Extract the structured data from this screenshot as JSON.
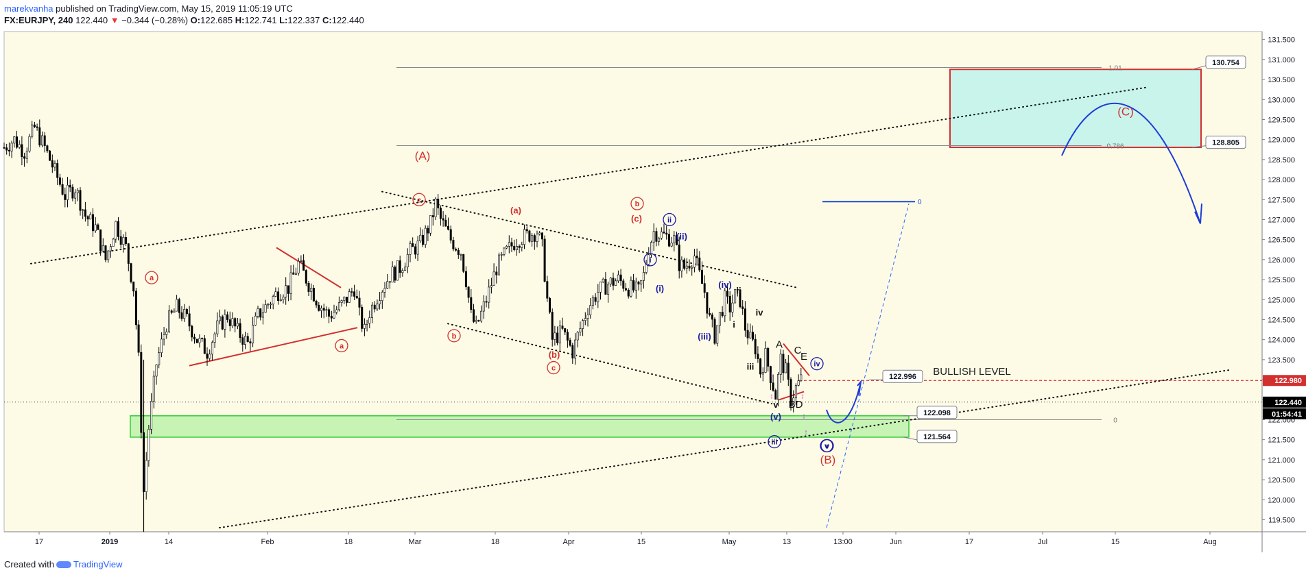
{
  "header": {
    "author": "marekvanha",
    "published": "published on TradingView.com, May 15, 2019 11:05:19 UTC",
    "symbol": "FX:EURJPY, 240",
    "last": "122.440",
    "change": "−0.344 (−0.28%)",
    "open_label": "O:",
    "open": "122.685",
    "high_label": "H:",
    "high": "122.741",
    "low_label": "L:",
    "low": "122.337",
    "close_label": "C:",
    "close": "122.440"
  },
  "footer": {
    "created_with": "Created with",
    "brand": "TradingView"
  },
  "colors": {
    "background": "#fdfbe6",
    "candle": "#000000",
    "red": "#d32f2f",
    "blue": "#1a1aa6",
    "green_zone": "#b9f2a9",
    "target_zone": "#c8f4ec",
    "magenta": "#e040fb"
  },
  "chart_data": {
    "type": "candlestick",
    "title": "EURJPY, 240",
    "ylim": [
      119.2,
      131.7
    ],
    "y_ticks": [
      "131.500",
      "131.000",
      "130.500",
      "130.000",
      "129.500",
      "129.000",
      "128.500",
      "128.000",
      "127.500",
      "127.000",
      "126.500",
      "126.000",
      "125.500",
      "125.000",
      "124.500",
      "124.000",
      "123.500",
      "123.000",
      "122.500",
      "122.000",
      "121.500",
      "121.000",
      "120.500",
      "120.000",
      "119.500"
    ],
    "x_ticks": [
      "17",
      "2019",
      "14",
      "Feb",
      "18",
      "Mar",
      "18",
      "Apr",
      "15",
      "May",
      "13",
      "13:00",
      "Jun",
      "17",
      "Jul",
      "15",
      "Aug"
    ],
    "price_path": [
      [
        0,
        128.8
      ],
      [
        4,
        129.0
      ],
      [
        8,
        128.7
      ],
      [
        12,
        129.3
      ],
      [
        16,
        128.8
      ],
      [
        20,
        128.2
      ],
      [
        24,
        127.6
      ],
      [
        28,
        127.8
      ],
      [
        32,
        127.1
      ],
      [
        36,
        126.8
      ],
      [
        40,
        126.0
      ],
      [
        44,
        126.9
      ],
      [
        48,
        126.3
      ],
      [
        51,
        125.3
      ],
      [
        53,
        123.5
      ],
      [
        55,
        120.2
      ],
      [
        57,
        121.8
      ],
      [
        60,
        123.4
      ],
      [
        64,
        124.4
      ],
      [
        68,
        124.8
      ],
      [
        72,
        124.5
      ],
      [
        76,
        124.0
      ],
      [
        80,
        123.7
      ],
      [
        84,
        124.3
      ],
      [
        88,
        124.6
      ],
      [
        92,
        124.2
      ],
      [
        96,
        123.9
      ],
      [
        100,
        124.6
      ],
      [
        104,
        124.9
      ],
      [
        108,
        125.2
      ],
      [
        112,
        125.3
      ],
      [
        116,
        125.9
      ],
      [
        120,
        125.4
      ],
      [
        124,
        124.9
      ],
      [
        128,
        124.6
      ],
      [
        132,
        124.8
      ],
      [
        136,
        125.1
      ],
      [
        138,
        125.3
      ],
      [
        140,
        124.6
      ],
      [
        142,
        124.2
      ],
      [
        144,
        124.7
      ],
      [
        148,
        125.2
      ],
      [
        152,
        125.6
      ],
      [
        156,
        125.8
      ],
      [
        160,
        126.2
      ],
      [
        164,
        126.4
      ],
      [
        168,
        126.9
      ],
      [
        170,
        127.4
      ],
      [
        172,
        127.0
      ],
      [
        176,
        126.5
      ],
      [
        180,
        126.2
      ],
      [
        182,
        125.5
      ],
      [
        184,
        124.6
      ],
      [
        186,
        124.3
      ],
      [
        190,
        125.0
      ],
      [
        194,
        125.8
      ],
      [
        198,
        126.2
      ],
      [
        202,
        126.5
      ],
      [
        206,
        126.6
      ],
      [
        210,
        126.7
      ],
      [
        212,
        126.3
      ],
      [
        214,
        125.0
      ],
      [
        216,
        124.0
      ],
      [
        220,
        124.2
      ],
      [
        224,
        123.7
      ],
      [
        226,
        124.1
      ],
      [
        230,
        124.8
      ],
      [
        234,
        125.2
      ],
      [
        238,
        125.4
      ],
      [
        242,
        125.5
      ],
      [
        246,
        125.3
      ],
      [
        250,
        125.2
      ],
      [
        252,
        125.6
      ],
      [
        254,
        126.3
      ],
      [
        256,
        126.7
      ],
      [
        260,
        126.6
      ],
      [
        264,
        126.5
      ],
      [
        266,
        125.9
      ],
      [
        268,
        125.8
      ],
      [
        272,
        126.1
      ],
      [
        274,
        125.6
      ],
      [
        276,
        125.2
      ],
      [
        278,
        124.5
      ],
      [
        280,
        124.1
      ],
      [
        282,
        124.6
      ],
      [
        284,
        125.0
      ],
      [
        286,
        124.8
      ],
      [
        288,
        125.1
      ],
      [
        290,
        125.0
      ],
      [
        292,
        124.3
      ],
      [
        294,
        124.0
      ],
      [
        296,
        123.8
      ],
      [
        298,
        123.2
      ],
      [
        300,
        123.6
      ],
      [
        302,
        123.1
      ],
      [
        304,
        122.6
      ],
      [
        306,
        123.5
      ],
      [
        308,
        123.2
      ],
      [
        310,
        122.5
      ],
      [
        312,
        122.8
      ],
      [
        314,
        123.0
      ],
      [
        315,
        122.44
      ]
    ],
    "levels": [
      {
        "name": "1.01",
        "price": 130.8
      },
      {
        "name": "0.786",
        "price": 128.85
      },
      {
        "name": "0",
        "price": 122.0
      },
      {
        "name": "122.980",
        "price": 122.98,
        "label": "BULLISH LEVEL"
      },
      {
        "name": "current",
        "price": 122.44
      }
    ],
    "zones": [
      {
        "name": "target",
        "top": 130.754,
        "bottom": 128.805
      },
      {
        "name": "support",
        "top": 122.098,
        "bottom": 121.564
      }
    ],
    "callouts": [
      "130.754",
      "128.805",
      "122.996",
      "122.098",
      "121.564"
    ],
    "axis_badges": [
      {
        "text": "122.980",
        "price": 122.98
      },
      {
        "text": "122.440",
        "price": 122.44
      },
      {
        "text": "01:54:41",
        "price": 122.1
      }
    ],
    "wave_labels": {
      "big": [
        "(A)",
        "(B)",
        "(C)"
      ],
      "red_circled": [
        "c",
        "a",
        "b",
        "a",
        "c",
        "b"
      ],
      "red_paren": [
        "(a)",
        "(b)",
        "(c)"
      ],
      "blue_circled": [
        "ii",
        "i",
        "iv",
        "v",
        "iii",
        "v"
      ],
      "blue_paren": [
        "(i)",
        "(ii)",
        "(iii)",
        "(iv)",
        "(v)"
      ],
      "black": [
        "ii",
        "iv",
        "i",
        "iii",
        "A",
        "C",
        "E",
        "BD",
        "v"
      ]
    },
    "annotation": "BULLISH LEVEL",
    "fib_zero_label": "0",
    "fib_top_labels": [
      "1.01",
      "0.786",
      "0"
    ]
  }
}
